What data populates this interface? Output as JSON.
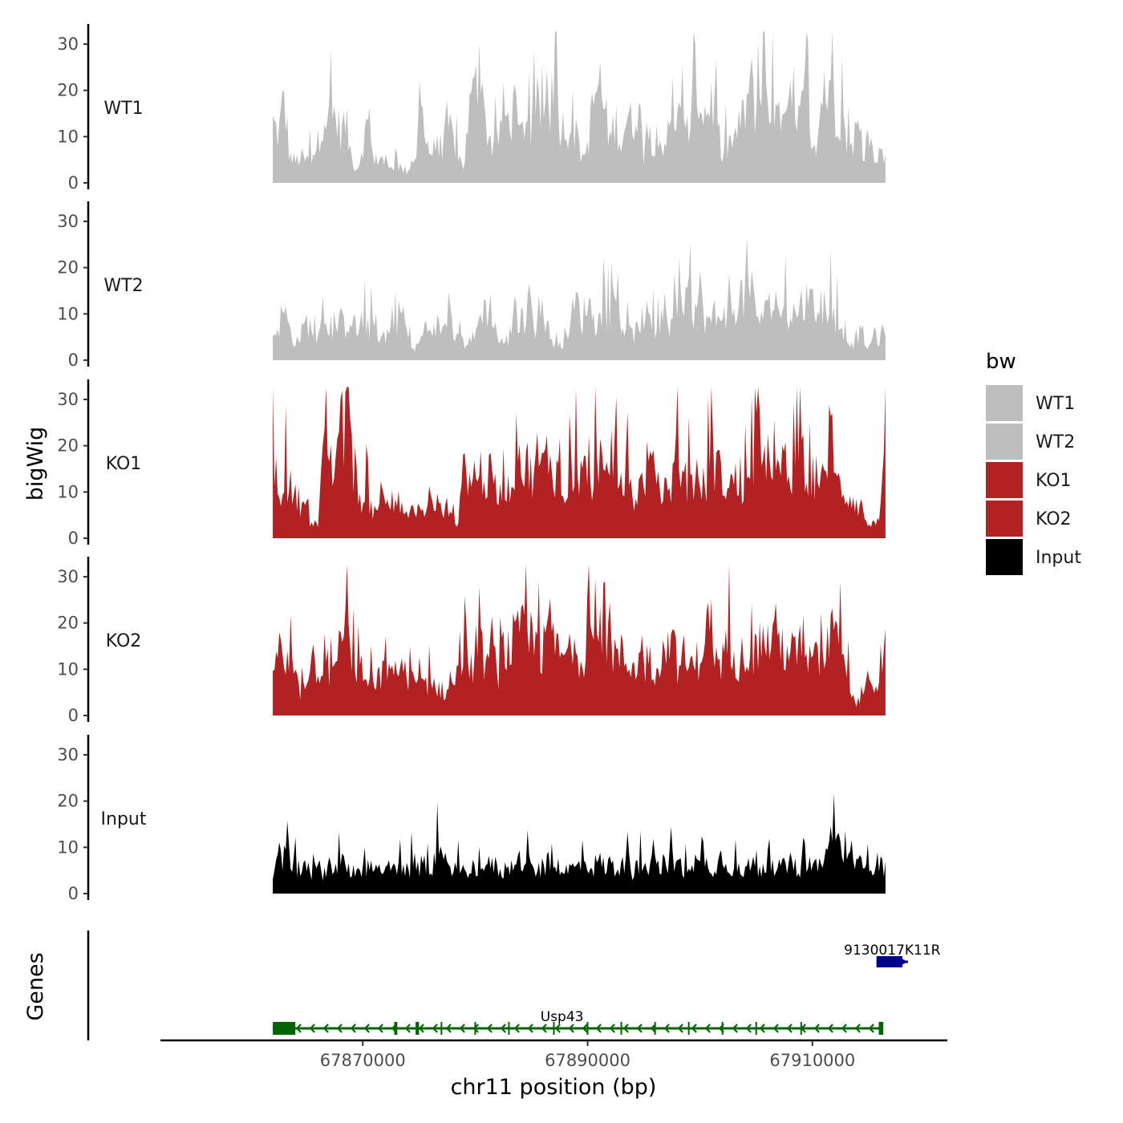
{
  "chart_data": {
    "type": "area",
    "title": "",
    "ylabel": "bigWig",
    "xlabel": "chr11 position (bp)",
    "genes_label": "Genes",
    "region": {
      "chrom": "chr11",
      "xlim": [
        67852000,
        67922000
      ],
      "data_range": [
        67862000,
        67916500
      ]
    },
    "ylim": [
      0,
      33
    ],
    "y_ticks": [
      "0",
      "10",
      "20",
      "30"
    ],
    "x_ticks": [
      67870000,
      67890000,
      67910000
    ],
    "x_tick_labels": [
      "67870000",
      "67890000",
      "67910000"
    ],
    "legend": {
      "title": "bw",
      "entries": [
        {
          "name": "WT1",
          "color": "#bebebe"
        },
        {
          "name": "WT2",
          "color": "#bebebe"
        },
        {
          "name": "KO1",
          "color": "#b22222"
        },
        {
          "name": "KO2",
          "color": "#b22222"
        },
        {
          "name": "Input",
          "color": "#000000"
        }
      ]
    },
    "tracks": [
      {
        "name": "WT1",
        "color": "#bebebe",
        "profile": [
          14,
          11,
          20,
          6,
          5,
          6,
          5,
          7,
          9,
          17,
          15,
          16,
          12,
          14,
          6,
          3,
          9,
          14,
          4,
          7,
          4,
          3,
          5,
          3,
          3,
          6,
          8,
          11,
          7,
          8,
          5,
          14,
          11,
          6,
          4,
          17,
          21,
          19,
          13,
          9,
          10,
          17,
          14,
          17,
          10,
          16,
          12,
          18,
          16,
          17,
          20,
          14,
          13,
          13,
          11,
          4,
          9,
          18,
          24,
          17,
          10,
          15,
          9,
          16,
          13,
          20,
          6,
          11,
          10,
          9,
          10,
          14,
          16,
          12,
          12,
          24,
          19,
          16,
          20,
          15,
          5,
          9,
          10,
          13,
          17,
          23,
          16,
          24,
          15,
          17,
          14,
          13,
          18,
          12,
          16,
          21,
          9,
          11,
          25,
          18,
          17,
          16,
          10,
          8,
          14,
          4,
          9,
          7,
          6,
          6
        ],
        "peaks": [
          [
            0.12,
            0.05
          ],
          [
            0.24,
            0.12
          ],
          [
            0.46,
            0.09
          ],
          [
            0.78,
            0.11
          ],
          [
            0.913,
            0.16
          ]
        ]
      },
      {
        "name": "WT2",
        "color": "#bebebe",
        "profile": [
          6,
          8,
          12,
          7,
          4,
          6,
          9,
          7,
          5,
          10,
          4,
          7,
          9,
          8,
          11,
          6,
          10,
          7,
          9,
          5,
          6,
          7,
          9,
          13,
          5,
          2,
          4,
          7,
          3,
          8,
          8,
          6,
          8,
          5,
          4,
          5,
          5,
          12,
          12,
          12,
          5,
          4,
          5,
          10,
          9,
          10,
          13,
          7,
          13,
          7,
          4,
          2,
          6,
          9,
          14,
          9,
          15,
          9,
          9,
          11,
          11,
          15,
          9,
          6,
          6,
          7,
          11,
          9,
          7,
          7,
          4,
          11,
          11,
          10,
          15,
          11,
          16,
          9,
          9,
          8,
          13,
          10,
          12,
          16,
          14,
          17,
          11,
          10,
          11,
          14,
          13,
          10,
          11,
          11,
          13,
          14,
          12,
          12,
          13,
          12,
          10,
          8,
          7,
          3,
          6,
          6,
          2,
          7,
          4,
          9
        ],
        "peaks": [
          [
            0.29,
            0.06
          ],
          [
            0.64,
            0.08
          ],
          [
            0.72,
            0.07
          ]
        ]
      },
      {
        "name": "KO1",
        "color": "#b22222",
        "profile": [
          20,
          9,
          15,
          12,
          10,
          8,
          5,
          4,
          3,
          18,
          20,
          16,
          24,
          28,
          19,
          14,
          7,
          10,
          5,
          10,
          12,
          11,
          9,
          7,
          4,
          6,
          6,
          5,
          8,
          9,
          6,
          6,
          4,
          4,
          15,
          17,
          11,
          16,
          13,
          15,
          9,
          16,
          11,
          17,
          12,
          18,
          15,
          19,
          16,
          20,
          16,
          14,
          12,
          16,
          15,
          17,
          14,
          13,
          21,
          12,
          14,
          17,
          10,
          16,
          9,
          11,
          14,
          19,
          13,
          10,
          11,
          13,
          16,
          12,
          12,
          14,
          14,
          11,
          21,
          16,
          14,
          11,
          14,
          12,
          13,
          11,
          25,
          27,
          18,
          15,
          14,
          18,
          11,
          16,
          22,
          16,
          14,
          16,
          11,
          23,
          12,
          13,
          10,
          10,
          8,
          7,
          2,
          5,
          4,
          19
        ],
        "peaks": [
          [
            0.11,
            0.14
          ],
          [
            0.73,
            0.09
          ],
          [
            0.912,
            0.15
          ]
        ]
      },
      {
        "name": "KO2",
        "color": "#b22222",
        "profile": [
          13,
          16,
          11,
          12,
          8,
          5,
          10,
          14,
          11,
          12,
          6,
          11,
          16,
          20,
          13,
          11,
          10,
          7,
          7,
          9,
          10,
          9,
          8,
          14,
          6,
          9,
          6,
          7,
          8,
          7,
          6,
          5,
          5,
          12,
          11,
          12,
          10,
          15,
          12,
          17,
          9,
          16,
          15,
          18,
          18,
          20,
          17,
          15,
          14,
          21,
          19,
          13,
          15,
          11,
          16,
          13,
          18,
          18,
          13,
          15,
          16,
          14,
          14,
          12,
          12,
          13,
          11,
          14,
          11,
          13,
          16,
          17,
          12,
          14,
          11,
          12,
          14,
          22,
          17,
          9,
          13,
          19,
          16,
          12,
          16,
          14,
          15,
          18,
          17,
          20,
          18,
          16,
          15,
          14,
          17,
          11,
          14,
          12,
          15,
          17,
          21,
          23,
          15,
          4,
          3,
          6,
          8,
          4,
          9,
          15
        ],
        "peaks": [
          [
            0.11,
            0.08
          ],
          [
            0.29,
            0.05
          ],
          [
            0.53,
            0.09
          ],
          [
            0.65,
            0.07
          ],
          [
            0.912,
            0.12
          ]
        ]
      },
      {
        "name": "Input",
        "color": "#000000",
        "profile": [
          5,
          9,
          8,
          6,
          7,
          5,
          6,
          5,
          6,
          5,
          7,
          6,
          8,
          6,
          5,
          7,
          6,
          6,
          8,
          5,
          7,
          5,
          6,
          6,
          5,
          6,
          6,
          7,
          6,
          8,
          9,
          6,
          7,
          6,
          5,
          6,
          6,
          7,
          6,
          7,
          6,
          5,
          7,
          6,
          8,
          7,
          6,
          5,
          6,
          7,
          6,
          7,
          5,
          6,
          6,
          7,
          7,
          6,
          8,
          6,
          7,
          6,
          6,
          7,
          5,
          6,
          6,
          7,
          7,
          6,
          8,
          6,
          7,
          6,
          7,
          8,
          6,
          7,
          6,
          7,
          9,
          7,
          6,
          7,
          5,
          7,
          6,
          6,
          7,
          7,
          6,
          6,
          7,
          6,
          6,
          7,
          7,
          6,
          7,
          10,
          12,
          11,
          8,
          7,
          7,
          6,
          7,
          7,
          7,
          6
        ],
        "peaks": [
          [
            0.024,
            0.08
          ],
          [
            0.65,
            0.07
          ],
          [
            0.91,
            0.07
          ]
        ]
      }
    ],
    "genes": [
      {
        "name": "Usp43",
        "strand": "-",
        "start": 67862000,
        "end": 67916300,
        "color": "#006400",
        "exons": [
          [
            67862000,
            67864000
          ],
          [
            67872800,
            67873000
          ],
          [
            67874700,
            67875000
          ],
          [
            67915900,
            67916300
          ]
        ],
        "ticks": [
          67873000,
          67877000,
          67880000,
          67883000,
          67887000,
          67890000,
          67893000,
          67896000,
          67899000,
          67902000,
          67905000,
          67909000
        ]
      },
      {
        "name": "9130017K11R",
        "strand": "+",
        "start": 67915700,
        "end": 67918500,
        "color": "#00008b",
        "exons": [
          [
            67915700,
            67918000
          ]
        ],
        "ticks": []
      }
    ]
  }
}
